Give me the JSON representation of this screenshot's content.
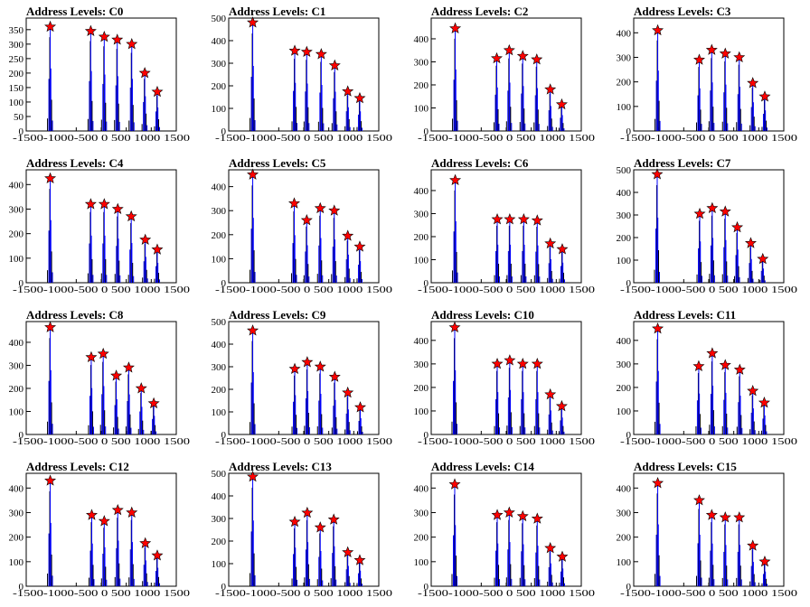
{
  "chart_data": {
    "type": "histogram",
    "xlim": [
      -1500,
      1500
    ],
    "x_ticks": [
      -1500,
      -1000,
      -500,
      0,
      500,
      1000,
      1500
    ],
    "x_tick_labels": [
      "-1500",
      "-1000",
      "",
      "",
      "",
      "",
      "1500"
    ],
    "x_tick_label_text": "-1500-1000-500 0 500 1000 1500",
    "histogram_color": "#0000ff",
    "marker_color": "#ff0000",
    "marker_shape": "star",
    "panels": [
      {
        "title": "Address Levels: C0",
        "ylim": [
          0,
          390
        ],
        "yticks": [
          0,
          50,
          100,
          150,
          200,
          250,
          300,
          350
        ],
        "levels": [
          -1020,
          -210,
          60,
          320,
          610,
          870,
          1120
        ],
        "peaks": [
          360,
          345,
          325,
          315,
          300,
          200,
          135
        ]
      },
      {
        "title": "Address Levels: C1",
        "ylim": [
          0,
          500
        ],
        "yticks": [
          0,
          100,
          200,
          300,
          400,
          500
        ],
        "levels": [
          -1020,
          -180,
          60,
          350,
          620,
          880,
          1120
        ],
        "peaks": [
          480,
          355,
          350,
          340,
          290,
          175,
          145
        ]
      },
      {
        "title": "Address Levels: C2",
        "ylim": [
          0,
          490
        ],
        "yticks": [
          0,
          100,
          200,
          300,
          400
        ],
        "levels": [
          -1020,
          -190,
          60,
          330,
          610,
          880,
          1110
        ],
        "peaks": [
          445,
          315,
          350,
          325,
          310,
          180,
          115
        ]
      },
      {
        "title": "Address Levels: C3",
        "ylim": [
          0,
          460
        ],
        "yticks": [
          0,
          100,
          200,
          300,
          400
        ],
        "levels": [
          -1020,
          -190,
          60,
          330,
          610,
          880,
          1120
        ],
        "peaks": [
          410,
          290,
          330,
          315,
          300,
          195,
          140
        ]
      },
      {
        "title": "Address Levels: C4",
        "ylim": [
          0,
          460
        ],
        "yticks": [
          0,
          100,
          200,
          300,
          400
        ],
        "levels": [
          -1020,
          -210,
          60,
          330,
          600,
          880,
          1120
        ],
        "peaks": [
          425,
          320,
          320,
          300,
          270,
          175,
          135
        ]
      },
      {
        "title": "Address Levels: C5",
        "ylim": [
          0,
          470
        ],
        "yticks": [
          0,
          100,
          200,
          300,
          400
        ],
        "levels": [
          -1020,
          -190,
          60,
          330,
          610,
          880,
          1120
        ],
        "peaks": [
          450,
          330,
          260,
          310,
          300,
          195,
          150
        ]
      },
      {
        "title": "Address Levels: C6",
        "ylim": [
          0,
          490
        ],
        "yticks": [
          0,
          100,
          200,
          300,
          400
        ],
        "levels": [
          -1020,
          -180,
          70,
          350,
          620,
          880,
          1120
        ],
        "peaks": [
          445,
          275,
          275,
          275,
          270,
          170,
          145
        ]
      },
      {
        "title": "Address Levels: C7",
        "ylim": [
          0,
          500
        ],
        "yticks": [
          0,
          100,
          200,
          300,
          400,
          500
        ],
        "levels": [
          -1030,
          -180,
          70,
          330,
          570,
          840,
          1080
        ],
        "peaks": [
          480,
          305,
          330,
          315,
          245,
          175,
          105
        ]
      },
      {
        "title": "Address Levels: C8",
        "ylim": [
          0,
          490
        ],
        "yticks": [
          0,
          100,
          200,
          300,
          400
        ],
        "levels": [
          -1020,
          -200,
          40,
          300,
          550,
          800,
          1050
        ],
        "peaks": [
          465,
          335,
          350,
          255,
          290,
          200,
          135
        ]
      },
      {
        "title": "Address Levels: C9",
        "ylim": [
          0,
          500
        ],
        "yticks": [
          0,
          100,
          200,
          300,
          400,
          500
        ],
        "levels": [
          -1020,
          -180,
          70,
          330,
          620,
          880,
          1130
        ],
        "peaks": [
          460,
          290,
          320,
          300,
          255,
          185,
          120
        ]
      },
      {
        "title": "Address Levels: C10",
        "ylim": [
          0,
          480
        ],
        "yticks": [
          0,
          100,
          200,
          300,
          400
        ],
        "levels": [
          -1030,
          -180,
          70,
          330,
          620,
          880,
          1110
        ],
        "peaks": [
          455,
          300,
          315,
          300,
          300,
          170,
          120
        ]
      },
      {
        "title": "Address Levels: C11",
        "ylim": [
          0,
          480
        ],
        "yticks": [
          0,
          100,
          200,
          300,
          400
        ],
        "levels": [
          -1020,
          -200,
          70,
          330,
          620,
          880,
          1110
        ],
        "peaks": [
          450,
          290,
          345,
          295,
          275,
          185,
          135
        ]
      },
      {
        "title": "Address Levels: C12",
        "ylim": [
          0,
          460
        ],
        "yticks": [
          0,
          100,
          200,
          300,
          400
        ],
        "levels": [
          -1020,
          -190,
          60,
          330,
          610,
          880,
          1120
        ],
        "peaks": [
          430,
          290,
          265,
          310,
          300,
          175,
          125
        ]
      },
      {
        "title": "Address Levels: C13",
        "ylim": [
          0,
          500
        ],
        "yticks": [
          0,
          100,
          200,
          300,
          400,
          500
        ],
        "levels": [
          -1020,
          -180,
          70,
          330,
          600,
          880,
          1120
        ],
        "peaks": [
          485,
          285,
          325,
          260,
          295,
          150,
          115
        ]
      },
      {
        "title": "Address Levels: C14",
        "ylim": [
          0,
          460
        ],
        "yticks": [
          0,
          100,
          200,
          300,
          400
        ],
        "levels": [
          -1030,
          -180,
          60,
          330,
          620,
          880,
          1120
        ],
        "peaks": [
          415,
          290,
          300,
          285,
          275,
          155,
          120
        ]
      },
      {
        "title": "Address Levels: C15",
        "ylim": [
          0,
          460
        ],
        "yticks": [
          0,
          100,
          200,
          300,
          400
        ],
        "levels": [
          -1020,
          -190,
          60,
          330,
          610,
          880,
          1120
        ],
        "peaks": [
          420,
          350,
          290,
          280,
          280,
          165,
          100
        ]
      }
    ]
  }
}
